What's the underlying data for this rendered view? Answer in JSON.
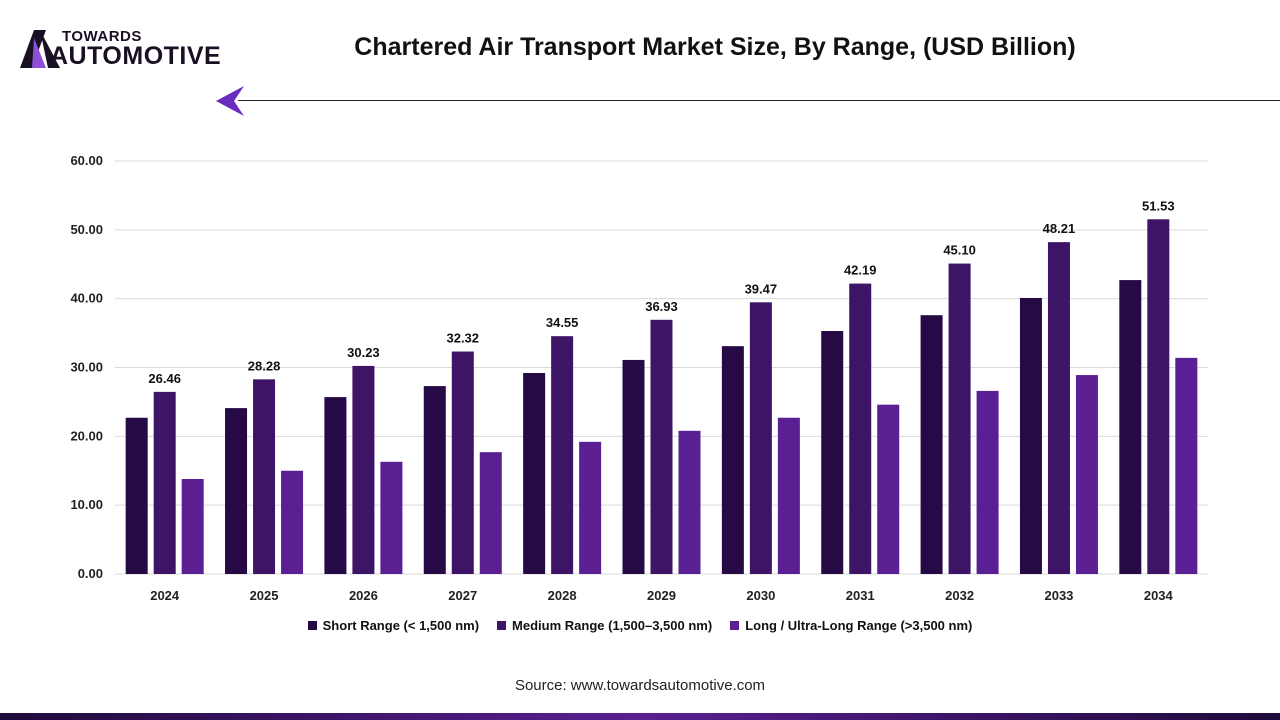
{
  "brand": {
    "line1": "TOWARDS",
    "line2": "AUTOMOTIVE"
  },
  "source": "Source: www.towardsautomotive.com",
  "chart_data": {
    "type": "bar",
    "title": "Chartered Air Transport Market Size, By Range, (USD Billion)",
    "categories": [
      "2024",
      "2025",
      "2026",
      "2027",
      "2028",
      "2029",
      "2030",
      "2031",
      "2032",
      "2033",
      "2034"
    ],
    "ylim": [
      0,
      60
    ],
    "yticks": [
      "0.00",
      "10.00",
      "20.00",
      "30.00",
      "40.00",
      "50.00",
      "60.00"
    ],
    "grid": true,
    "legend_position": "bottom",
    "series": [
      {
        "name": "Short Range (< 1,500 nm)",
        "color": "#250a45",
        "values": [
          22.7,
          24.1,
          25.7,
          27.3,
          29.2,
          31.1,
          33.1,
          35.3,
          37.6,
          40.1,
          42.7
        ]
      },
      {
        "name": "Medium Range (1,500–3,500 nm)",
        "color": "#3d1466",
        "values": [
          26.46,
          28.28,
          30.23,
          32.32,
          34.55,
          36.93,
          39.47,
          42.19,
          45.1,
          48.21,
          51.53
        ],
        "labels": [
          "26.46",
          "28.28",
          "30.23",
          "32.32",
          "34.55",
          "36.93",
          "39.47",
          "42.19",
          "45.10",
          "48.21",
          "51.53"
        ]
      },
      {
        "name": "Long / Ultra-Long Range (>3,500 nm)",
        "color": "#5a1f92",
        "values": [
          13.8,
          15.0,
          16.3,
          17.7,
          19.2,
          20.8,
          22.7,
          24.6,
          26.6,
          28.9,
          31.4
        ]
      }
    ]
  }
}
